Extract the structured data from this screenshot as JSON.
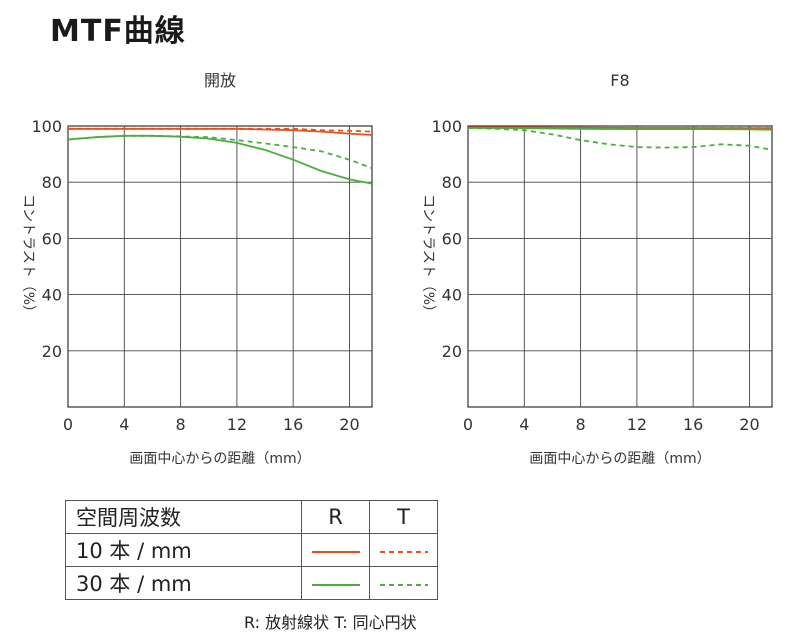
{
  "page_title": "MTF曲線",
  "chart_data": [
    {
      "type": "line",
      "title": "開放",
      "xlabel": "画面中心からの距離（mm）",
      "ylabel": "コントラスト（%）",
      "xlim": [
        0,
        21.6
      ],
      "ylim": [
        0,
        100
      ],
      "xticks": [
        0,
        4,
        8,
        12,
        16,
        20
      ],
      "yticks": [
        20,
        40,
        60,
        80,
        100
      ],
      "grid": true,
      "series": [
        {
          "name": "10本/mm R",
          "color": "#e8501e",
          "dash": false,
          "x": [
            0,
            4,
            8,
            12,
            16,
            18,
            20,
            21.6
          ],
          "y": [
            99,
            99,
            99,
            99,
            98.5,
            98,
            97.3,
            96.8
          ]
        },
        {
          "name": "10本/mm T",
          "color": "#e8501e",
          "dash": true,
          "x": [
            0,
            4,
            8,
            12,
            16,
            18,
            20,
            21.6
          ],
          "y": [
            99,
            99,
            99,
            99,
            99,
            98.5,
            98.3,
            98
          ]
        },
        {
          "name": "30本/mm R",
          "color": "#4aaf3c",
          "dash": false,
          "x": [
            0,
            2,
            4,
            6,
            8,
            10,
            12,
            14,
            16,
            18,
            20,
            21.6
          ],
          "y": [
            95.2,
            96,
            96.5,
            96.5,
            96.2,
            95.5,
            94,
            91.5,
            88,
            84,
            81,
            79.5
          ]
        },
        {
          "name": "30本/mm T",
          "color": "#4aaf3c",
          "dash": true,
          "x": [
            0,
            2,
            4,
            6,
            8,
            10,
            12,
            14,
            16,
            18,
            20,
            21.6
          ],
          "y": [
            95.2,
            96,
            96.5,
            96.5,
            96.3,
            96,
            95,
            93.8,
            92.5,
            91,
            88,
            85
          ]
        }
      ]
    },
    {
      "type": "line",
      "title": "F8",
      "xlabel": "画面中心からの距離（mm）",
      "ylabel": "コントラスト（%）",
      "xlim": [
        0,
        21.6
      ],
      "ylim": [
        0,
        100
      ],
      "xticks": [
        0,
        4,
        8,
        12,
        16,
        20
      ],
      "yticks": [
        20,
        40,
        60,
        80,
        100
      ],
      "grid": true,
      "series": [
        {
          "name": "10本/mm R",
          "color": "#e8501e",
          "dash": false,
          "x": [
            0,
            4,
            8,
            12,
            16,
            20,
            21.6
          ],
          "y": [
            99.5,
            99.5,
            99.4,
            99.3,
            99.3,
            99.2,
            99.2
          ]
        },
        {
          "name": "10本/mm T",
          "color": "#e8501e",
          "dash": true,
          "x": [
            0,
            4,
            8,
            12,
            16,
            20,
            21.6
          ],
          "y": [
            99.5,
            99.5,
            99.2,
            99.2,
            99.2,
            99.2,
            99.2
          ]
        },
        {
          "name": "30本/mm R",
          "color": "#4aaf3c",
          "dash": false,
          "x": [
            0,
            4,
            8,
            12,
            16,
            20,
            21.6
          ],
          "y": [
            99.3,
            99.2,
            99,
            98.9,
            98.9,
            98.8,
            98.7
          ]
        },
        {
          "name": "30本/mm T",
          "color": "#4aaf3c",
          "dash": true,
          "x": [
            0,
            2,
            4,
            6,
            8,
            10,
            12,
            14,
            16,
            18,
            20,
            21.6
          ],
          "y": [
            99.3,
            99,
            98.5,
            97,
            95,
            93.5,
            92.5,
            92.3,
            92.5,
            93.5,
            93,
            91.5
          ]
        }
      ]
    }
  ],
  "legend": {
    "header": {
      "label": "空間周波数",
      "r": "R",
      "t": "T"
    },
    "rows": [
      {
        "label": "10 本 / mm",
        "color": "#e8501e"
      },
      {
        "label": "30 本 / mm",
        "color": "#4aaf3c"
      }
    ]
  },
  "footnote": "R: 放射線状  T: 同心円状"
}
